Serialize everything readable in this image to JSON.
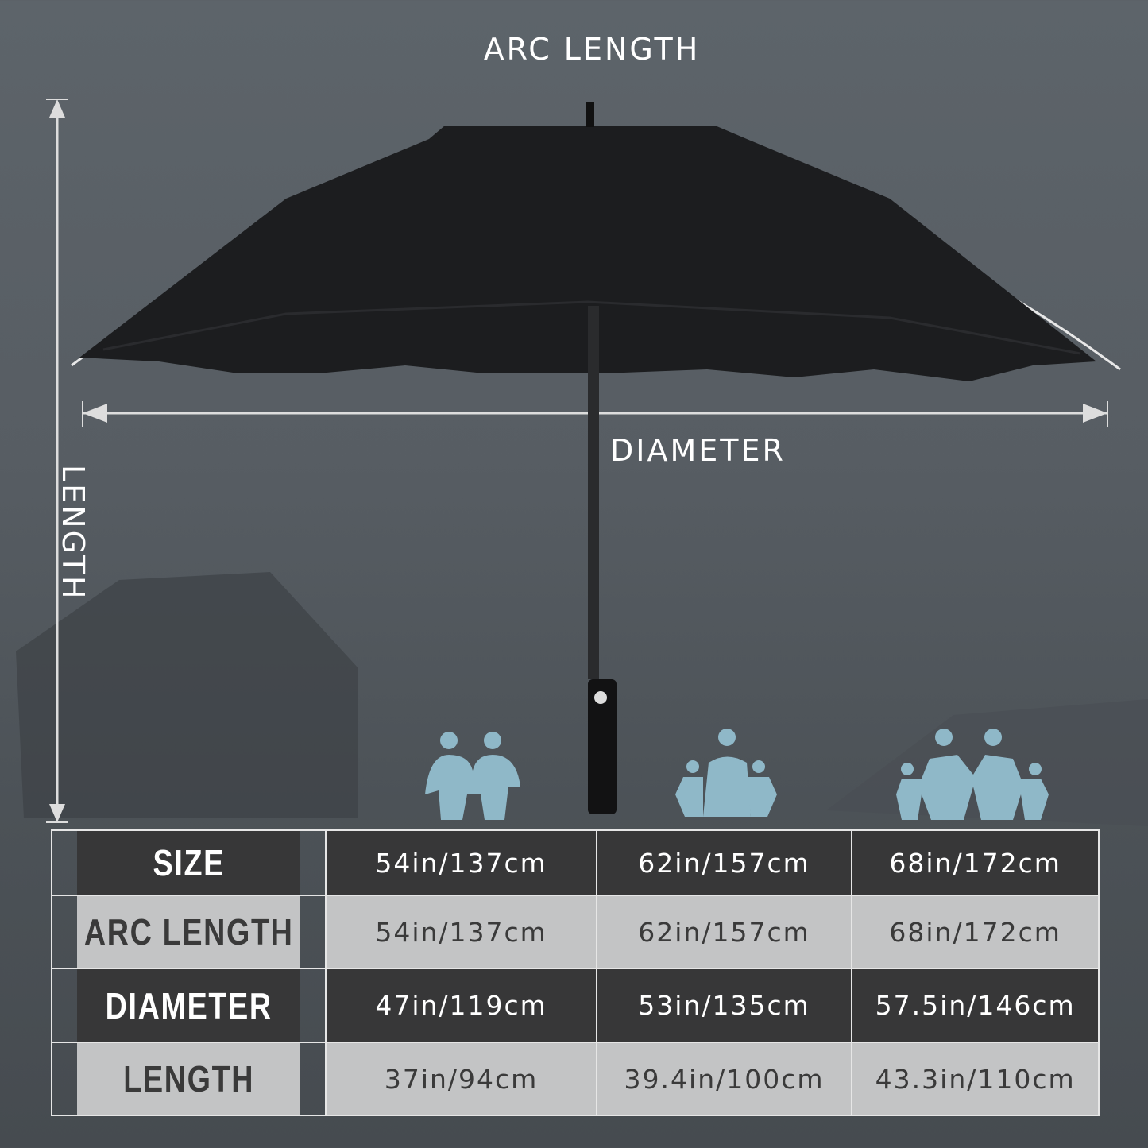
{
  "labels": {
    "arc_length": "ARC LENGTH",
    "diameter": "DIAMETER",
    "length": "LENGTH"
  },
  "colors": {
    "family_icons": "#8fb8c8",
    "umbrella": "#1c1d1f"
  },
  "icons": [
    "couple-icon",
    "family-of-four-icon",
    "family-of-five-icon"
  ],
  "table": {
    "rows": [
      {
        "header": "SIZE",
        "values": [
          "54in/137cm",
          "62in/157cm",
          "68in/172cm"
        ]
      },
      {
        "header": "ARC LENGTH",
        "values": [
          "54in/137cm",
          "62in/157cm",
          "68in/172cm"
        ]
      },
      {
        "header": "DIAMETER",
        "values": [
          "47in/119cm",
          "53in/135cm",
          "57.5in/146cm"
        ]
      },
      {
        "header": "LENGTH",
        "values": [
          "37in/94cm",
          "39.4in/100cm",
          "43.3in/110cm"
        ]
      }
    ]
  }
}
